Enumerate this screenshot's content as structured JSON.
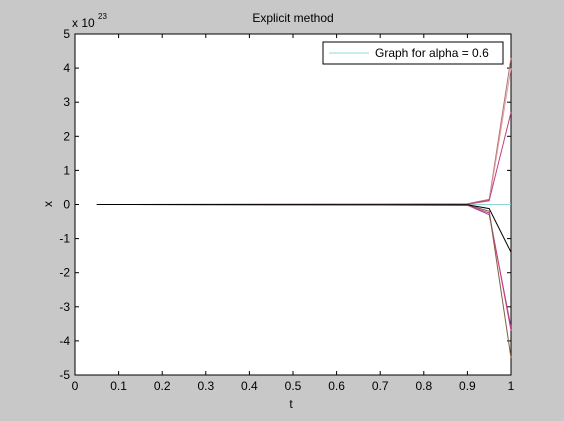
{
  "chart_data": {
    "type": "line",
    "title": "Explicit method",
    "xlabel": "t",
    "ylabel": "x",
    "xlim": [
      0,
      1
    ],
    "ylim": [
      -5,
      5
    ],
    "x_ticks": [
      "0",
      "0.1",
      "0.2",
      "0.3",
      "0.4",
      "0.5",
      "0.6",
      "0.7",
      "0.8",
      "0.9",
      "1"
    ],
    "y_ticks": [
      "-5",
      "-4",
      "-3",
      "-2",
      "-1",
      "0",
      "1",
      "2",
      "3",
      "4",
      "5"
    ],
    "y_multiplier_base": "x 10",
    "y_multiplier_exp": "23",
    "grid": false,
    "legend_position": "top-right",
    "legend": [
      {
        "label": "Graph for alpha = 0.6",
        "color": "#8fd8d8"
      }
    ],
    "x": [
      0.05,
      0.9,
      0.95,
      1.0
    ],
    "series": [
      {
        "color": "#8fd8d8",
        "values": [
          0,
          0,
          0,
          0
        ]
      },
      {
        "color": "#b07070",
        "values": [
          0,
          0.02,
          0.15,
          4.3
        ]
      },
      {
        "color": "#e0a0a0",
        "values": [
          0,
          0.01,
          0.1,
          4.0
        ]
      },
      {
        "color": "#c04080",
        "values": [
          0,
          0.01,
          0.12,
          2.7
        ]
      },
      {
        "color": "#9040a0",
        "values": [
          0,
          -0.02,
          -0.3,
          -3.6
        ]
      },
      {
        "color": "#d04080",
        "values": [
          0,
          -0.02,
          -0.25,
          -3.7
        ]
      },
      {
        "color": "#806040",
        "values": [
          0,
          -0.01,
          -0.2,
          -4.5
        ]
      },
      {
        "color": "#000000",
        "values": [
          0,
          -0.01,
          -0.12,
          -1.4
        ]
      }
    ]
  }
}
